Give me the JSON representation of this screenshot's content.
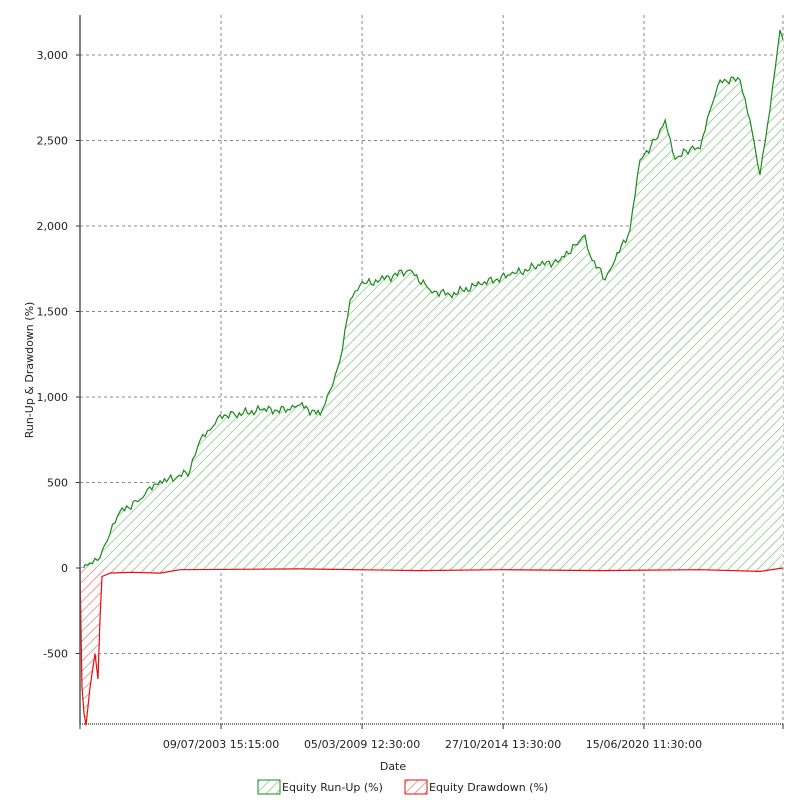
{
  "chart_data": {
    "type": "area",
    "title": "",
    "xlabel": "Date",
    "ylabel": "Run-Up & Drawdown (%)",
    "xlim": [
      1997.87,
      2026.03
    ],
    "ylim": [
      -920,
      3220
    ],
    "grid": true,
    "legend_placement": "bottom-center",
    "y_ticks": [
      {
        "value": 3000,
        "label": "3,000"
      },
      {
        "value": 2500,
        "label": "2,500"
      },
      {
        "value": 2000,
        "label": "2,000"
      },
      {
        "value": 1500,
        "label": "1,500"
      },
      {
        "value": 1000,
        "label": "1,000"
      },
      {
        "value": 500,
        "label": "500"
      },
      {
        "value": 0,
        "label": "0"
      },
      {
        "value": -500,
        "label": "-500"
      }
    ],
    "x_ticks": [
      {
        "value": 2003.52,
        "label": "09/07/2003 15:15:00"
      },
      {
        "value": 2009.17,
        "label": "05/03/2009 12:30:00"
      },
      {
        "value": 2014.82,
        "label": "27/10/2014 13:30:00"
      },
      {
        "value": 2020.46,
        "label": "15/06/2020 11:30:00"
      }
    ],
    "series": [
      {
        "name": "Equity Run-Up (%)",
        "color": "#1a8a1a",
        "x": [
          1997.87,
          1998.27,
          1998.67,
          1999.07,
          1999.47,
          2000.27,
          2000.67,
          2001.08,
          2001.68,
          2002.28,
          2002.68,
          2003.08,
          2003.48,
          2004.08,
          2005.08,
          2006.28,
          2006.68,
          2007.49,
          2007.89,
          2008.29,
          2008.69,
          2009.09,
          2009.89,
          2011.09,
          2011.89,
          2012.69,
          2013.9,
          2015.1,
          2016.3,
          2017.1,
          2017.7,
          2018.1,
          2018.3,
          2018.9,
          2019.3,
          2019.9,
          2020.3,
          2020.91,
          2021.31,
          2021.71,
          2022.31,
          2022.71,
          2023.11,
          2023.51,
          2024.31,
          2024.71,
          2025.11,
          2025.51,
          2025.71,
          2025.91,
          2026.03
        ],
        "values": [
          0,
          30,
          60,
          200,
          330,
          400,
          474,
          510,
          520,
          570,
          748,
          807,
          895,
          895,
          924,
          924,
          953,
          895,
          1040,
          1216,
          1567,
          1655,
          1684,
          1743,
          1626,
          1597,
          1660,
          1713,
          1770,
          1801,
          1889,
          1947,
          1830,
          1684,
          1800,
          1977,
          2386,
          2503,
          2620,
          2390,
          2450,
          2450,
          2678,
          2854,
          2854,
          2620,
          2298,
          2680,
          2912,
          3146,
          3090
        ]
      },
      {
        "name": "Equity Drawdown (%)",
        "color": "#e01010",
        "x": [
          1997.87,
          1997.95,
          1998.03,
          1998.11,
          1998.27,
          1998.47,
          1998.59,
          1998.67,
          1998.75,
          1999.07,
          1999.87,
          2001.08,
          2001.88,
          2006.68,
          2011.49,
          2014.7,
          2018.7,
          2022.71,
          2025.11,
          2026.03
        ],
        "values": [
          0,
          -700,
          -850,
          -920,
          -700,
          -500,
          -650,
          -300,
          -50,
          -30,
          -25,
          -30,
          -10,
          -5,
          -15,
          -10,
          -15,
          -10,
          -20,
          0
        ]
      }
    ]
  }
}
